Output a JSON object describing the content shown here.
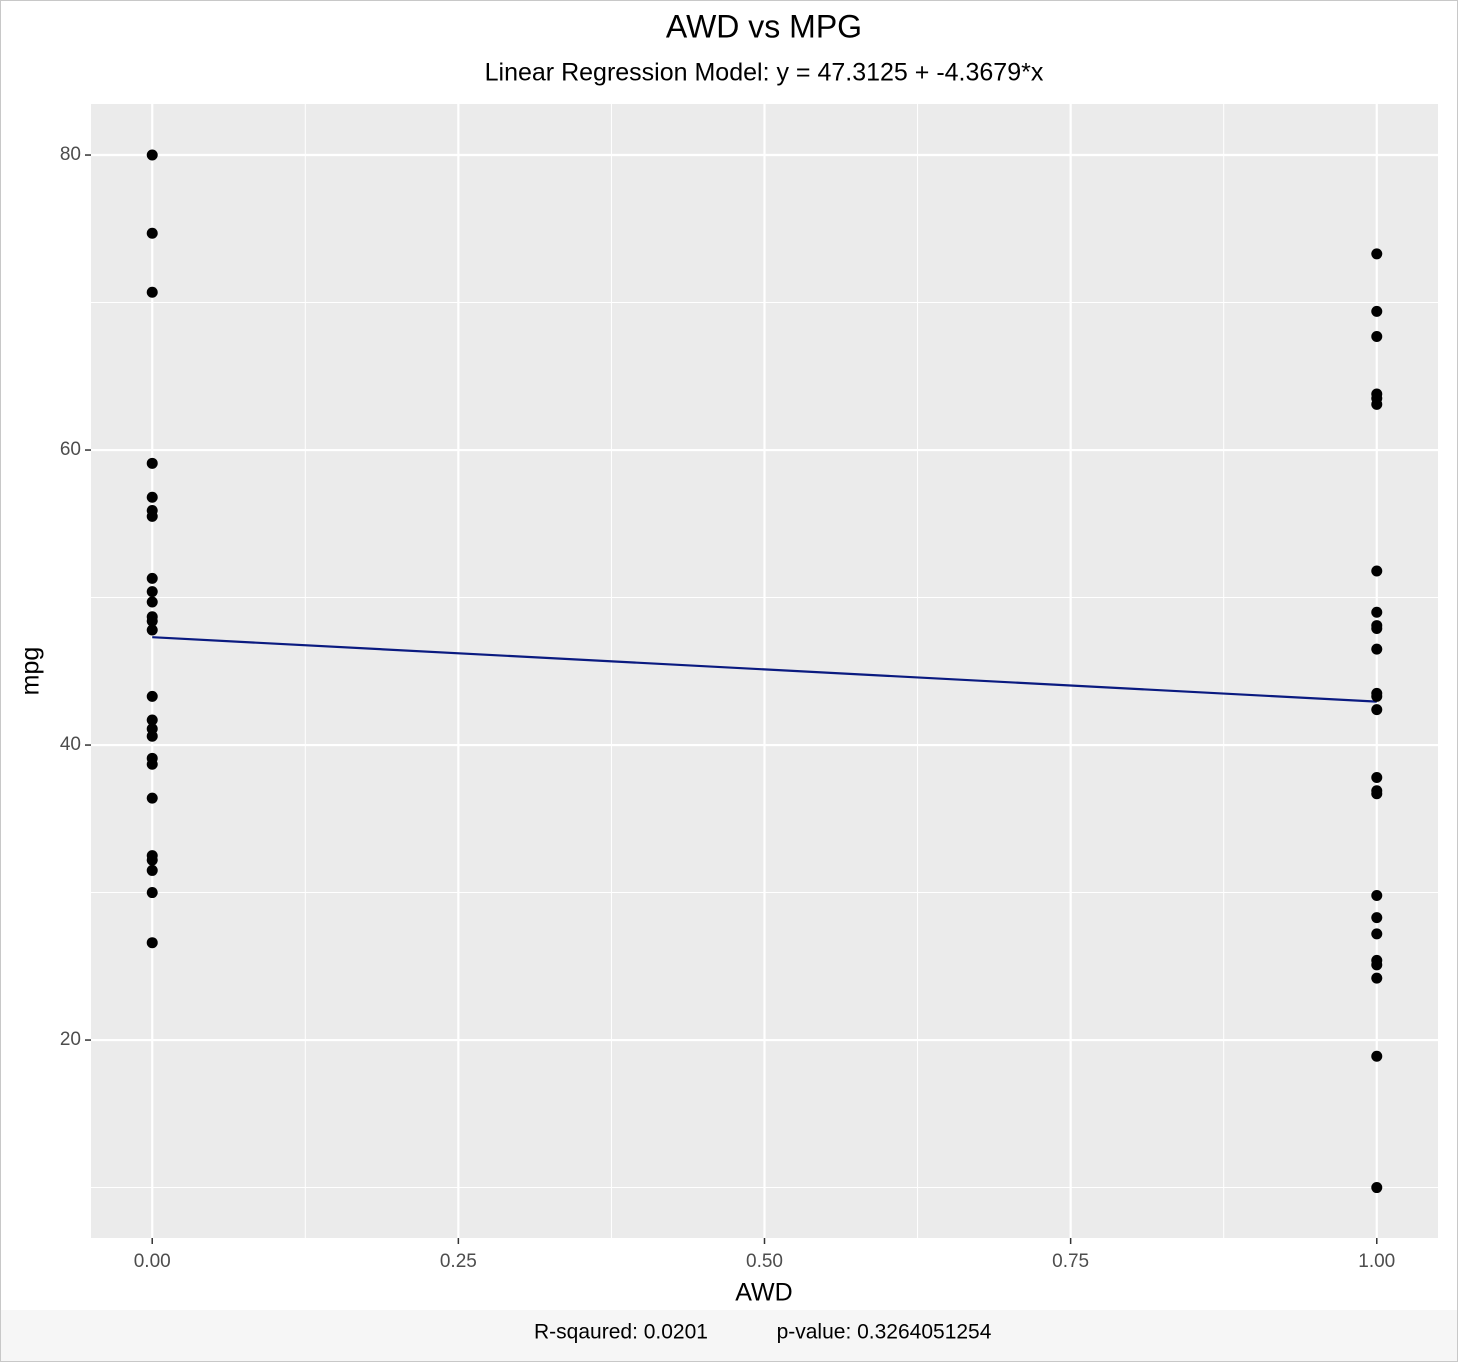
{
  "chart_data": {
    "type": "scatter",
    "title": "AWD vs MPG",
    "subtitle": "Linear Regression Model: y = 47.3125 + -4.3679*x",
    "x_label": "AWD",
    "y_label": "mpg",
    "caption": [
      "R-sqaured: 0.0201",
      "p-value: 0.3264051254"
    ],
    "x": [
      0,
      0,
      0,
      0,
      0,
      0,
      0,
      0,
      0,
      0,
      0,
      0,
      0,
      0,
      0,
      0,
      0,
      0,
      0,
      0,
      0,
      0,
      0,
      0,
      0,
      1,
      1,
      1,
      1,
      1,
      1,
      1,
      1,
      1,
      1,
      1,
      1,
      1,
      1,
      1,
      1,
      1,
      1,
      1,
      1,
      1,
      1,
      1,
      1,
      1
    ],
    "values": [
      80,
      74.7,
      70.7,
      59.1,
      56.8,
      55.9,
      55.5,
      51.3,
      50.4,
      49.7,
      48.7,
      48.4,
      47.8,
      43.3,
      41.7,
      41.1,
      40.6,
      39.1,
      38.7,
      36.4,
      32.5,
      32.2,
      31.5,
      30.0,
      26.6,
      73.3,
      69.4,
      67.7,
      63.8,
      63.5,
      63.1,
      51.8,
      49.0,
      48.1,
      47.9,
      46.5,
      43.5,
      43.3,
      42.4,
      37.8,
      36.9,
      36.7,
      29.8,
      28.3,
      27.2,
      25.4,
      25.1,
      24.2,
      18.9,
      10.0
    ],
    "color": "#000000",
    "fit_line": {
      "x": [
        0,
        1
      ],
      "values": [
        47.3125,
        42.9446
      ],
      "color": "#0a1a80"
    },
    "xlim": [
      -0.05,
      1.05
    ],
    "ylim": [
      6.58,
      83.46
    ],
    "xticks": [
      {
        "value": 0,
        "label": "0.00"
      },
      {
        "value": 0.25,
        "label": "0.25"
      },
      {
        "value": 0.5,
        "label": "0.50"
      },
      {
        "value": 0.75,
        "label": "0.75"
      },
      {
        "value": 1,
        "label": "1.00"
      }
    ],
    "yticks": [
      20,
      40,
      60,
      80
    ],
    "minor_xticks": [
      0.125,
      0.375,
      0.625,
      0.875
    ],
    "minor_yticks": [
      10,
      30,
      50,
      70
    ],
    "grid": true
  }
}
